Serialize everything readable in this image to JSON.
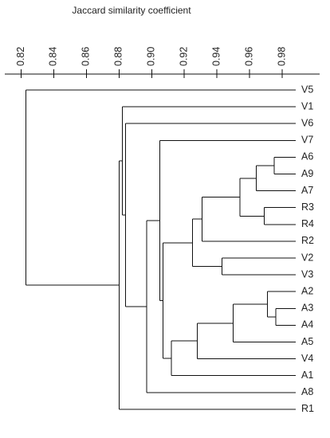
{
  "chart_data": {
    "type": "dendrogram",
    "title": "Jaccard similarity coefficient",
    "axis": {
      "position": "top",
      "min": 0.81,
      "max": 1.0,
      "ticks": [
        {
          "value": 0.82,
          "label": "0.82"
        },
        {
          "value": 0.84,
          "label": "0.84"
        },
        {
          "value": 0.86,
          "label": "0.86"
        },
        {
          "value": 0.88,
          "label": "0.88"
        },
        {
          "value": 0.9,
          "label": "0.90"
        },
        {
          "value": 0.92,
          "label": "0.92"
        },
        {
          "value": 0.94,
          "label": "0.94"
        },
        {
          "value": 0.96,
          "label": "0.96"
        },
        {
          "value": 0.98,
          "label": "0.98"
        }
      ]
    },
    "leaves": [
      "V5",
      "V1",
      "V6",
      "V7",
      "A6",
      "A9",
      "A7",
      "R3",
      "R4",
      "R2",
      "V2",
      "V3",
      "A2",
      "A3",
      "A4",
      "A5",
      "V4",
      "A1",
      "A8",
      "R1"
    ],
    "merges": [
      {
        "id": "m1",
        "left": "A6",
        "right": "A9",
        "similarity": 0.975
      },
      {
        "id": "m2",
        "left": "m1",
        "right": "A7",
        "similarity": 0.964
      },
      {
        "id": "m3",
        "left": "R3",
        "right": "R4",
        "similarity": 0.969
      },
      {
        "id": "m4",
        "left": "m2",
        "right": "m3",
        "similarity": 0.954
      },
      {
        "id": "m5",
        "left": "m4",
        "right": "R2",
        "similarity": 0.931
      },
      {
        "id": "m6",
        "left": "V2",
        "right": "V3",
        "similarity": 0.943
      },
      {
        "id": "m7",
        "left": "m5",
        "right": "m6",
        "similarity": 0.925
      },
      {
        "id": "m8",
        "left": "A3",
        "right": "A4",
        "similarity": 0.976
      },
      {
        "id": "m9",
        "left": "A2",
        "right": "m8",
        "similarity": 0.971
      },
      {
        "id": "m10",
        "left": "m9",
        "right": "A5",
        "similarity": 0.95
      },
      {
        "id": "m11",
        "left": "m10",
        "right": "V4",
        "similarity": 0.928
      },
      {
        "id": "m12",
        "left": "m11",
        "right": "A1",
        "similarity": 0.912
      },
      {
        "id": "m13",
        "left": "m7",
        "right": "m12",
        "similarity": 0.907
      },
      {
        "id": "m14",
        "left": "V7",
        "right": "m13",
        "similarity": 0.905
      },
      {
        "id": "m15",
        "left": "m14",
        "right": "A8",
        "similarity": 0.897
      },
      {
        "id": "m16",
        "left": "V6",
        "right": "m15",
        "similarity": 0.884
      },
      {
        "id": "m17",
        "left": "V1",
        "right": "m16",
        "similarity": 0.882
      },
      {
        "id": "m18",
        "left": "m17",
        "right": "R1",
        "similarity": 0.88
      },
      {
        "id": "m19",
        "left": "V5",
        "right": "m18",
        "similarity": 0.823
      }
    ]
  }
}
